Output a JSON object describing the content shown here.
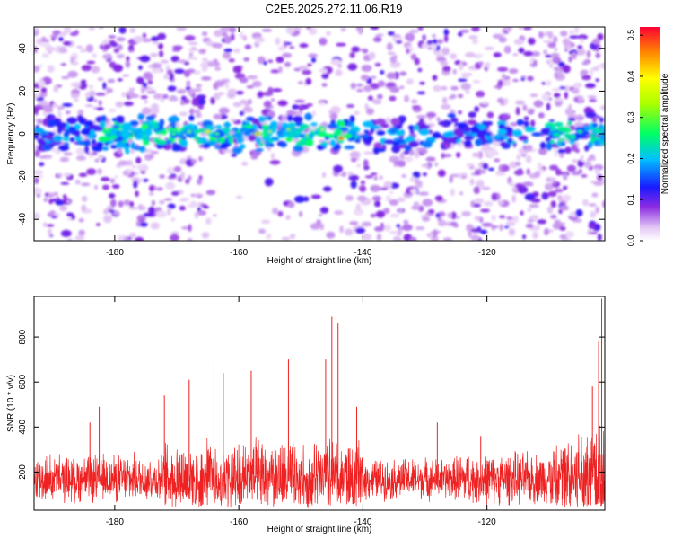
{
  "title": "C2E5.2025.272.11.06.R19",
  "chart_data": [
    {
      "type": "heatmap",
      "xlabel": "Height of straight line (km)",
      "ylabel": "Frequency (Hz)",
      "xlim": [
        -193,
        -101
      ],
      "ylim": [
        -50,
        50
      ],
      "xticks": [
        -180,
        -160,
        -140,
        -120
      ],
      "yticks": [
        -40,
        -20,
        0,
        20,
        40
      ],
      "colorbar": {
        "label": "Normalized spectral amplitude",
        "range": [
          0.0,
          0.52
        ],
        "ticks": [
          0.0,
          0.1,
          0.2,
          0.3,
          0.4,
          0.5
        ],
        "tick_labels": [
          "0.0",
          "0.1",
          "0.2",
          "0.3",
          "0.4",
          "0.5"
        ]
      },
      "description_band": {
        "center_frequency_hz": 0,
        "peak_value": 0.52,
        "peak_height_km": -143.5
      }
    },
    {
      "type": "line",
      "xlabel": "Height of straight line (km)",
      "ylabel": "SNR (10 * v/v)",
      "xlim": [
        -193,
        -101
      ],
      "ylim": [
        30,
        980
      ],
      "xticks": [
        -180,
        -160,
        -140,
        -120
      ],
      "yticks": [
        200,
        400,
        600,
        800
      ],
      "series": [
        {
          "name": "SNR",
          "color": "#ee2222",
          "baseline": 160,
          "peaks": [
            {
              "x": -184.0,
              "y": 420
            },
            {
              "x": -182.5,
              "y": 490
            },
            {
              "x": -172.0,
              "y": 540
            },
            {
              "x": -168.0,
              "y": 610
            },
            {
              "x": -164.0,
              "y": 690
            },
            {
              "x": -162.5,
              "y": 640
            },
            {
              "x": -158.0,
              "y": 650
            },
            {
              "x": -152.0,
              "y": 700
            },
            {
              "x": -146.0,
              "y": 700
            },
            {
              "x": -145.0,
              "y": 890
            },
            {
              "x": -144.0,
              "y": 860
            },
            {
              "x": -141.0,
              "y": 490
            },
            {
              "x": -128.0,
              "y": 420
            },
            {
              "x": -121.0,
              "y": 360
            },
            {
              "x": -103.0,
              "y": 580
            },
            {
              "x": -102.0,
              "y": 780
            },
            {
              "x": -101.5,
              "y": 970
            }
          ]
        }
      ]
    }
  ]
}
